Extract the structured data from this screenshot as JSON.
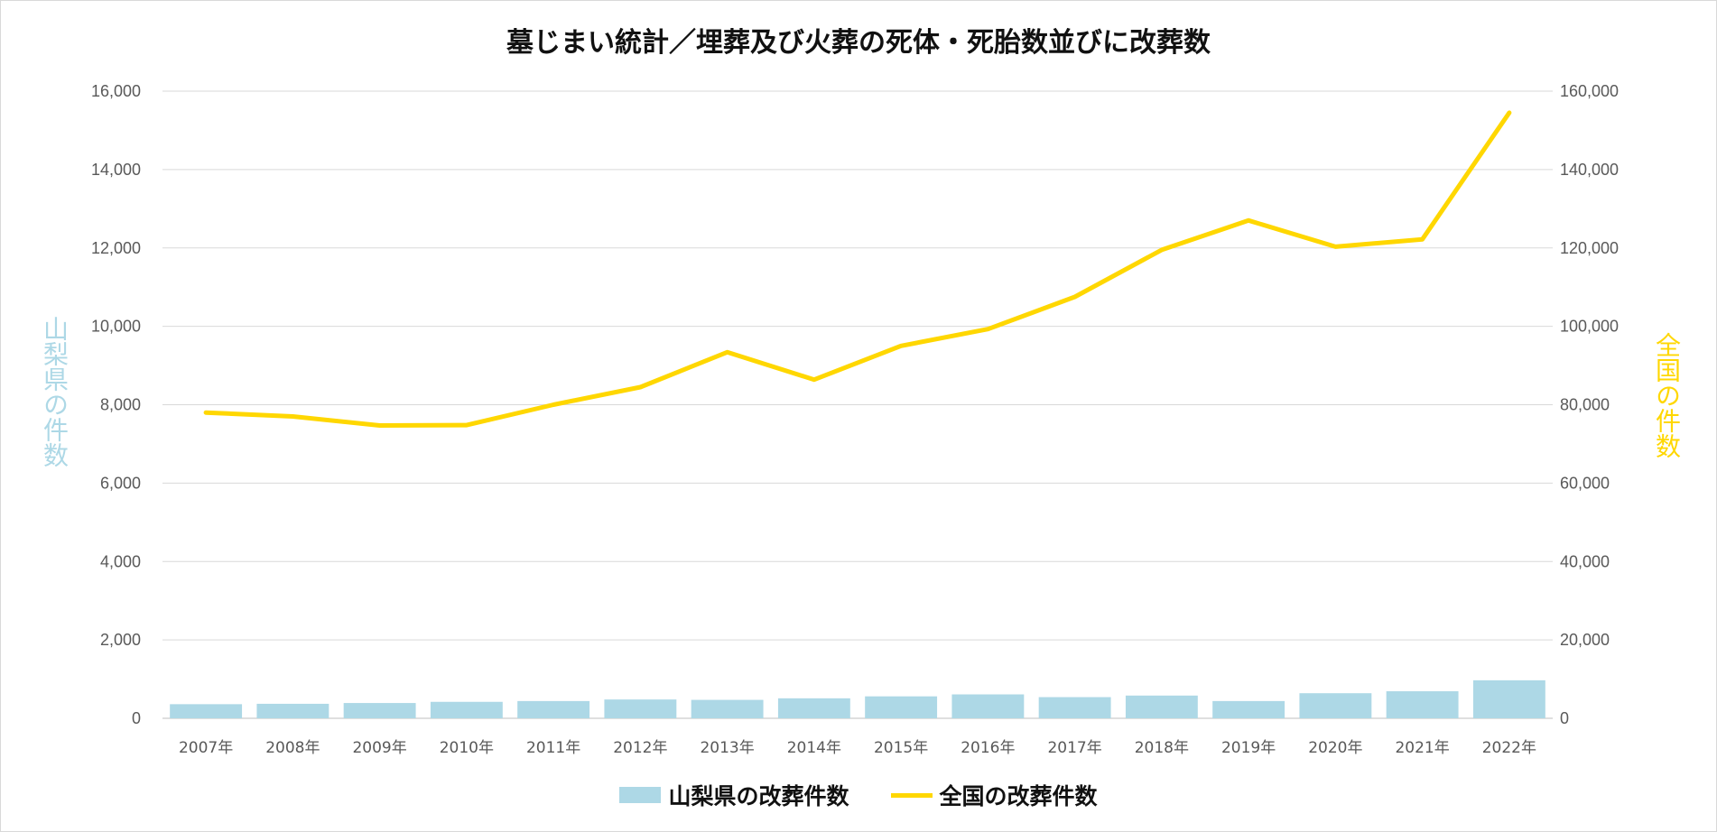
{
  "chart_data": {
    "type": "bar+line",
    "title": "墓じまい統計／埋葬及び火葬の死体・死胎数並びに改葬数",
    "categories": [
      "2007年",
      "2008年",
      "2009年",
      "2010年",
      "2011年",
      "2012年",
      "2013年",
      "2014年",
      "2015年",
      "2016年",
      "2017年",
      "2018年",
      "2019年",
      "2020年",
      "2021年",
      "2022年"
    ],
    "series": [
      {
        "name": "山梨県の改葬件数",
        "type": "bar",
        "axis": "left",
        "color": "#add8e6",
        "values": [
          360,
          370,
          390,
          420,
          440,
          480,
          470,
          510,
          560,
          610,
          540,
          580,
          440,
          640,
          690,
          970
        ]
      },
      {
        "name": "全国の改葬件数",
        "type": "line",
        "axis": "right",
        "color": "#ffd700",
        "values": [
          78000,
          77000,
          74700,
          74800,
          80000,
          84500,
          93400,
          86400,
          95000,
          99300,
          107500,
          119500,
          127000,
          120300,
          122200,
          154500
        ]
      }
    ],
    "y_left": {
      "label": "山梨県の件数",
      "range": [
        0,
        16000
      ],
      "ticks": [
        "0",
        "2,000",
        "4,000",
        "6,000",
        "8,000",
        "10,000",
        "12,000",
        "14,000",
        "16,000"
      ]
    },
    "y_right": {
      "label": "全国の件数",
      "range": [
        0,
        160000
      ],
      "ticks": [
        "0",
        "20,000",
        "40,000",
        "60,000",
        "80,000",
        "100,000",
        "120,000",
        "140,000",
        "160,000"
      ]
    },
    "grid": true,
    "legend_position": "bottom"
  }
}
